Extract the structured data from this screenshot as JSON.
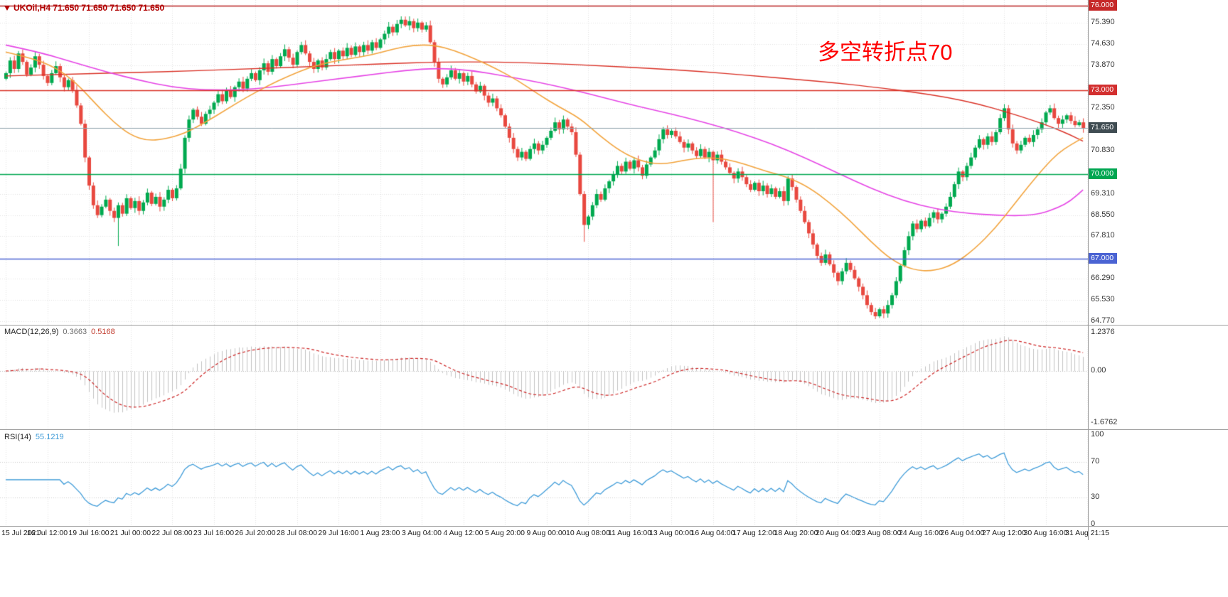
{
  "chart_data": {
    "type": "candlestick",
    "symbol": "UKOil",
    "timeframe": "H4",
    "title_symbol": "UKOil,H4",
    "title_ohlc": "71.650 71.650 71.650 71.650",
    "x_labels": [
      "15 Jul 2021",
      "16 Jul 12:00",
      "19 Jul 16:00",
      "21 Jul 00:00",
      "22 Jul 08:00",
      "23 Jul 16:00",
      "26 Jul 20:00",
      "28 Jul 08:00",
      "29 Jul 16:00",
      "1 Aug 23:00",
      "3 Aug 04:00",
      "4 Aug 12:00",
      "5 Aug 20:00",
      "9 Aug 00:00",
      "10 Aug 08:00",
      "11 Aug 16:00",
      "13 Aug 00:00",
      "16 Aug 04:00",
      "17 Aug 12:00",
      "18 Aug 20:00",
      "20 Aug 04:00",
      "23 Aug 08:00",
      "24 Aug 16:00",
      "26 Aug 04:00",
      "27 Aug 12:00",
      "30 Aug 16:00",
      "31 Aug 21:15"
    ],
    "panels": [
      {
        "name": "price",
        "annotation": {
          "text": "多空转折点70",
          "color": "#ff0000"
        },
        "y_ticks": [
          "75.390",
          "74.630",
          "73.870",
          "72.350",
          "70.830",
          "69.310",
          "68.550",
          "67.810",
          "66.290",
          "65.530",
          "64.770"
        ],
        "y_range": [
          64.77,
          76.0
        ],
        "hlines": [
          {
            "price": 76.0,
            "label": "76.000",
            "color": "#b71c1c",
            "badge_bg": "#c62828"
          },
          {
            "price": 73.0,
            "label": "73.000",
            "color": "#d93025",
            "badge_bg": "#d32f2f"
          },
          {
            "price": 71.65,
            "label": "71.650",
            "color": "#90a4ae",
            "badge_bg": "#3f4c52",
            "role": "bid-price"
          },
          {
            "price": 70.0,
            "label": "70.000",
            "color": "#00a651",
            "badge_bg": "#00a651"
          },
          {
            "price": 67.0,
            "label": "67.000",
            "color": "#4a63d3",
            "badge_bg": "#4a63d3"
          }
        ],
        "up_color": "#00a94f",
        "down_color": "#e8483f",
        "first_open": 73.4,
        "closes": [
          73.6,
          74.05,
          73.75,
          74.3,
          74.0,
          73.55,
          73.8,
          74.2,
          73.9,
          73.5,
          73.25,
          73.6,
          73.85,
          73.45,
          73.1,
          73.35,
          73.0,
          72.45,
          71.8,
          70.6,
          69.6,
          68.9,
          68.55,
          68.85,
          69.1,
          68.7,
          68.45,
          68.9,
          68.6,
          69.15,
          68.8,
          69.05,
          68.7,
          69.0,
          69.35,
          68.95,
          69.2,
          68.85,
          69.1,
          69.45,
          69.15,
          69.5,
          70.2,
          71.3,
          71.95,
          72.3,
          72.05,
          71.8,
          72.15,
          72.3,
          72.55,
          72.85,
          72.6,
          73.0,
          72.75,
          73.1,
          73.3,
          73.05,
          73.4,
          73.6,
          73.35,
          73.7,
          73.95,
          73.65,
          74.1,
          73.85,
          74.2,
          74.45,
          74.15,
          73.9,
          74.35,
          74.6,
          74.3,
          74.0,
          73.75,
          74.05,
          73.8,
          74.1,
          74.35,
          74.1,
          74.4,
          74.2,
          74.5,
          74.25,
          74.55,
          74.35,
          74.6,
          74.4,
          74.7,
          74.5,
          74.8,
          75.0,
          75.25,
          75.05,
          75.35,
          75.5,
          75.3,
          75.45,
          75.2,
          75.4,
          75.15,
          75.3,
          74.7,
          74.0,
          73.4,
          73.2,
          73.45,
          73.7,
          73.4,
          73.6,
          73.3,
          73.5,
          73.2,
          72.95,
          73.15,
          72.8,
          72.55,
          72.7,
          72.35,
          72.1,
          71.7,
          71.3,
          70.9,
          70.6,
          70.8,
          70.55,
          70.9,
          71.1,
          70.85,
          71.05,
          71.3,
          71.55,
          71.85,
          71.6,
          71.95,
          71.7,
          71.5,
          70.7,
          69.3,
          68.2,
          68.5,
          68.9,
          69.3,
          69.1,
          69.5,
          69.75,
          70.0,
          70.3,
          70.1,
          70.45,
          70.2,
          70.5,
          70.25,
          69.95,
          70.35,
          70.6,
          70.85,
          71.25,
          71.6,
          71.4,
          71.55,
          71.35,
          71.15,
          70.95,
          71.1,
          70.85,
          70.65,
          70.9,
          70.6,
          70.8,
          70.5,
          70.7,
          70.45,
          70.25,
          70.05,
          69.85,
          70.1,
          69.9,
          69.65,
          69.45,
          69.7,
          69.4,
          69.6,
          69.3,
          69.5,
          69.2,
          69.4,
          69.05,
          69.85,
          69.55,
          69.1,
          68.7,
          68.3,
          67.9,
          67.5,
          67.1,
          66.85,
          67.15,
          66.8,
          66.5,
          66.2,
          66.55,
          66.85,
          66.6,
          66.3,
          66.0,
          65.7,
          65.35,
          65.1,
          64.95,
          65.2,
          65.05,
          65.35,
          65.7,
          66.2,
          66.75,
          67.3,
          67.8,
          68.25,
          68.05,
          68.35,
          68.15,
          68.45,
          68.65,
          68.4,
          68.6,
          68.85,
          69.2,
          69.65,
          70.1,
          69.9,
          70.3,
          70.6,
          70.95,
          71.25,
          71.05,
          71.35,
          71.15,
          71.5,
          72.0,
          72.35,
          71.6,
          71.1,
          70.85,
          71.05,
          71.3,
          71.15,
          71.4,
          71.6,
          71.85,
          72.2,
          72.35,
          72.0,
          71.8,
          71.95,
          72.1,
          71.9,
          71.75,
          71.85,
          71.65
        ],
        "wick_overrides": {
          "27": [
            69.0,
            67.45
          ],
          "95": [
            75.62,
            75.2
          ],
          "139": [
            69.4,
            67.6
          ],
          "170": [
            70.85,
            68.3
          ],
          "209": [
            65.25,
            64.85
          ],
          "240": [
            72.5,
            71.9
          ]
        },
        "mas": [
          {
            "name": "ma-slow",
            "color": "#d93025",
            "width": 1.4,
            "points": [
              [
                0,
                73.5
              ],
              [
                15,
                73.56
              ],
              [
                30,
                73.62
              ],
              [
                45,
                73.68
              ],
              [
                60,
                73.76
              ],
              [
                75,
                73.84
              ],
              [
                90,
                73.93
              ],
              [
                105,
                74.0
              ],
              [
                118,
                74.0
              ],
              [
                130,
                73.95
              ],
              [
                142,
                73.87
              ],
              [
                155,
                73.77
              ],
              [
                168,
                73.65
              ],
              [
                180,
                73.5
              ],
              [
                190,
                73.38
              ],
              [
                200,
                73.25
              ],
              [
                210,
                73.08
              ],
              [
                218,
                72.93
              ],
              [
                226,
                72.75
              ],
              [
                234,
                72.5
              ],
              [
                241,
                72.2
              ],
              [
                247,
                71.92
              ],
              [
                252,
                71.65
              ],
              [
                256,
                71.4
              ],
              [
                259,
                71.18
              ]
            ]
          },
          {
            "name": "ma-mid",
            "color": "#e544e5",
            "width": 1.6,
            "points": [
              [
                0,
                74.6
              ],
              [
                8,
                74.35
              ],
              [
                16,
                74.0
              ],
              [
                24,
                73.65
              ],
              [
                32,
                73.35
              ],
              [
                40,
                73.1
              ],
              [
                48,
                73.0
              ],
              [
                56,
                73.0
              ],
              [
                64,
                73.1
              ],
              [
                72,
                73.25
              ],
              [
                80,
                73.4
              ],
              [
                88,
                73.55
              ],
              [
                96,
                73.7
              ],
              [
                104,
                73.78
              ],
              [
                112,
                73.7
              ],
              [
                120,
                73.5
              ],
              [
                128,
                73.28
              ],
              [
                136,
                73.02
              ],
              [
                144,
                72.72
              ],
              [
                152,
                72.42
              ],
              [
                160,
                72.15
              ],
              [
                168,
                71.85
              ],
              [
                176,
                71.5
              ],
              [
                184,
                71.1
              ],
              [
                192,
                70.6
              ],
              [
                200,
                70.05
              ],
              [
                208,
                69.5
              ],
              [
                216,
                69.05
              ],
              [
                224,
                68.75
              ],
              [
                232,
                68.6
              ],
              [
                238,
                68.55
              ],
              [
                244,
                68.52
              ],
              [
                249,
                68.6
              ],
              [
                253,
                68.82
              ],
              [
                256,
                69.05
              ],
              [
                259,
                69.45
              ]
            ]
          },
          {
            "name": "ma-fast",
            "color": "#f2a33c",
            "width": 1.6,
            "points": [
              [
                0,
                74.35
              ],
              [
                6,
                74.15
              ],
              [
                12,
                73.8
              ],
              [
                17,
                73.25
              ],
              [
                22,
                72.45
              ],
              [
                26,
                71.85
              ],
              [
                30,
                71.4
              ],
              [
                34,
                71.2
              ],
              [
                38,
                71.25
              ],
              [
                43,
                71.45
              ],
              [
                48,
                71.85
              ],
              [
                53,
                72.3
              ],
              [
                58,
                72.75
              ],
              [
                63,
                73.15
              ],
              [
                68,
                73.5
              ],
              [
                73,
                73.8
              ],
              [
                78,
                74.0
              ],
              [
                83,
                74.12
              ],
              [
                88,
                74.25
              ],
              [
                93,
                74.45
              ],
              [
                98,
                74.6
              ],
              [
                103,
                74.6
              ],
              [
                108,
                74.4
              ],
              [
                113,
                74.1
              ],
              [
                118,
                73.75
              ],
              [
                123,
                73.35
              ],
              [
                128,
                72.85
              ],
              [
                133,
                72.4
              ],
              [
                138,
                72.0
              ],
              [
                143,
                71.35
              ],
              [
                148,
                70.8
              ],
              [
                153,
                70.45
              ],
              [
                158,
                70.35
              ],
              [
                163,
                70.5
              ],
              [
                168,
                70.6
              ],
              [
                173,
                70.55
              ],
              [
                178,
                70.35
              ],
              [
                183,
                70.1
              ],
              [
                188,
                69.9
              ],
              [
                193,
                69.55
              ],
              [
                198,
                69.0
              ],
              [
                203,
                68.35
              ],
              [
                208,
                67.6
              ],
              [
                213,
                66.95
              ],
              [
                218,
                66.6
              ],
              [
                223,
                66.55
              ],
              [
                228,
                66.8
              ],
              [
                233,
                67.35
              ],
              [
                238,
                68.1
              ],
              [
                242,
                68.85
              ],
              [
                246,
                69.6
              ],
              [
                250,
                70.3
              ],
              [
                253,
                70.75
              ],
              [
                256,
                71.05
              ],
              [
                259,
                71.3
              ]
            ]
          }
        ]
      },
      {
        "name": "MACD(12,26,9)",
        "type": "bar",
        "value_main": "0.3663",
        "value_signal": "0.5168",
        "y_ticks": [
          "1.2376",
          "0.00",
          "-1.6762"
        ],
        "y_range": [
          -1.6762,
          1.2376
        ],
        "histogram_color": "#c2c2c2",
        "signal_color": "#cc2222",
        "derivation": "histogram = EMA12-EMA26 of closes, signal = EMA9 of histogram, clamped to y_range"
      },
      {
        "name": "RSI(14)",
        "type": "line",
        "value": "55.1219",
        "y_ticks": [
          "100",
          "70",
          "30",
          "0"
        ],
        "levels": [
          70,
          30
        ],
        "line_color": "#3e9bd8",
        "derivation": "Wilder RSI(14) of closes"
      }
    ]
  }
}
